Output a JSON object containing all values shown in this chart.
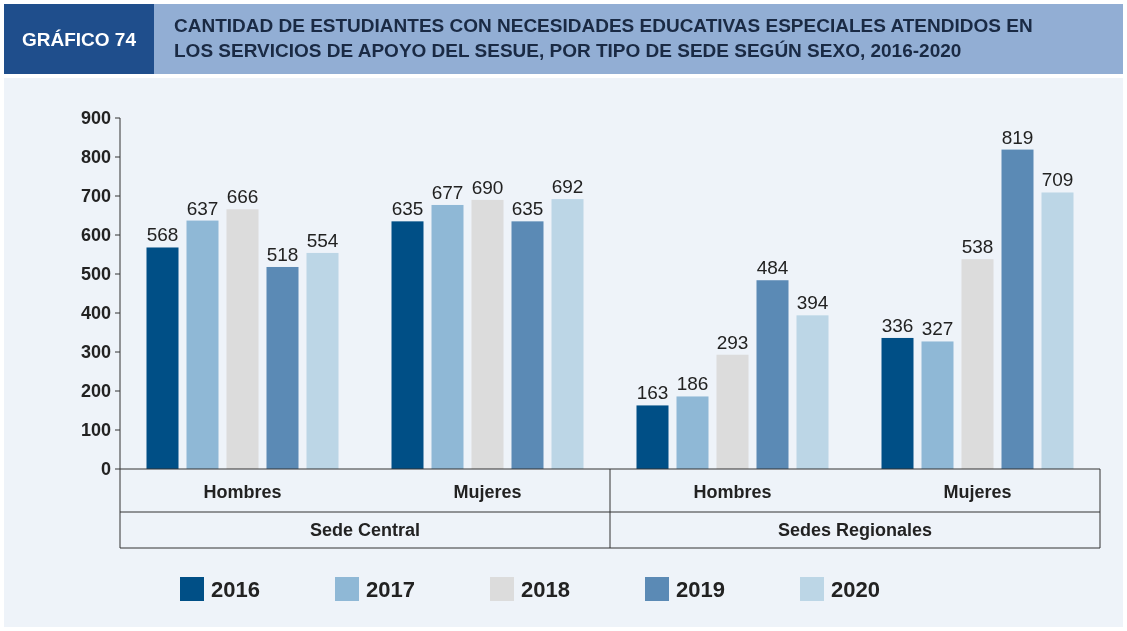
{
  "chart_data": {
    "type": "bar",
    "title": "CANTIDAD DE ESTUDIANTES CON NECESIDADES EDUCATIVAS ESPECIALES ATENDIDOS EN LOS SERVICIOS DE APOYO DEL SESUE, POR TIPO DE SEDE SEGÚN SEXO, 2016-2020",
    "subtitle": "GRÁFICO 74",
    "categories": [
      "Hombres",
      "Mujeres",
      "Hombres",
      "Mujeres"
    ],
    "annotations": [
      "Sede Central",
      "Sedes Regionales"
    ],
    "series": [
      {
        "name": "2016",
        "color": "#004f86",
        "values": [
          568,
          635,
          163,
          336
        ]
      },
      {
        "name": "2017",
        "color": "#8fb8d6",
        "values": [
          637,
          677,
          186,
          327
        ]
      },
      {
        "name": "2018",
        "color": "#dcdcdc",
        "values": [
          666,
          690,
          293,
          538
        ]
      },
      {
        "name": "2019",
        "color": "#5b8ab5",
        "values": [
          518,
          635,
          484,
          819
        ]
      },
      {
        "name": "2020",
        "color": "#bcd6e6",
        "values": [
          554,
          692,
          394,
          709
        ]
      }
    ],
    "ylim": [
      0,
      900
    ],
    "yticks": [
      0,
      100,
      200,
      300,
      400,
      500,
      600,
      700,
      800,
      900
    ],
    "data_labels": true,
    "legend": "bottom",
    "grid": false
  }
}
